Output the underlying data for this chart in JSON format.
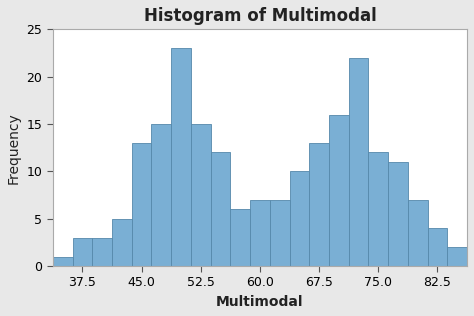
{
  "title": "Histogram of Multimodal",
  "xlabel": "Multimodal",
  "ylabel": "Frequency",
  "bar_color": "#7aafd4",
  "bar_edge_color": "#5588aa",
  "background_color": "#e8e8e8",
  "plot_bg_color": "#ffffff",
  "bin_left_edges": [
    33.75,
    36.25,
    38.75,
    41.25,
    43.75,
    46.25,
    48.75,
    51.25,
    53.75,
    56.25,
    58.75,
    61.25,
    63.75,
    66.25,
    68.75,
    71.25,
    73.75,
    76.25,
    78.75,
    81.25,
    83.75
  ],
  "frequencies": [
    1,
    3,
    3,
    5,
    13,
    15,
    23,
    15,
    12,
    6,
    7,
    7,
    10,
    13,
    16,
    22,
    12,
    11,
    7,
    4,
    2
  ],
  "bin_width": 2.5,
  "xlim": [
    33.75,
    86.25
  ],
  "ylim": [
    0,
    25
  ],
  "yticks": [
    0,
    5,
    10,
    15,
    20,
    25
  ],
  "xticks": [
    37.5,
    45.0,
    52.5,
    60.0,
    67.5,
    75.0,
    82.5
  ],
  "title_fontsize": 12,
  "label_fontsize": 10,
  "tick_fontsize": 9
}
